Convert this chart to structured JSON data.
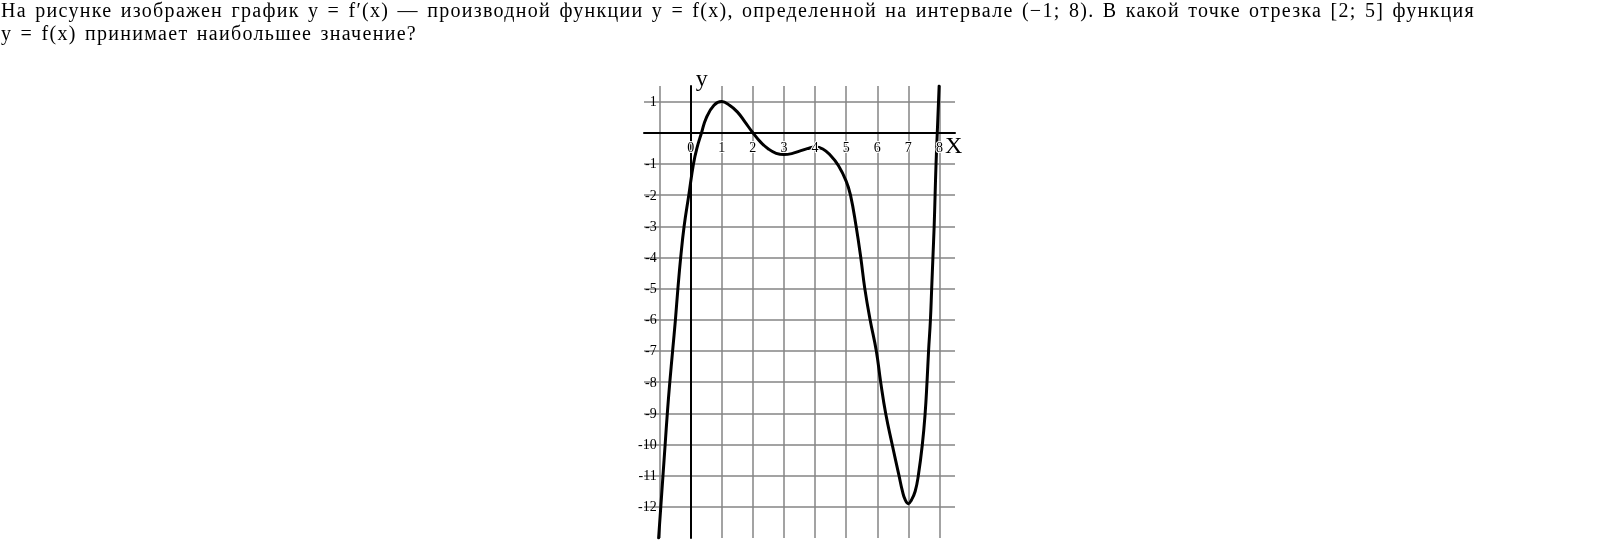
{
  "chart_data": {
    "type": "line",
    "title": "На рисунке изображен график y = f′(x) — производной функции y = f(x), определенной на интервале (−1; 8). В какой точке отрезка [2; 5] функция y = f(x) принимает наибольшее значение?",
    "xlabel": "X",
    "ylabel": "y",
    "x": [
      -1.03,
      -0.96,
      -0.89,
      -0.82,
      -0.75,
      -0.67,
      -0.58,
      -0.49,
      -0.41,
      -0.32,
      -0.21,
      -0.06,
      0.09,
      0.2,
      0.35,
      0.5,
      0.75,
      1,
      1.25,
      1.5,
      1.75,
      2,
      2.25,
      2.5,
      2.75,
      3,
      3.25,
      3.5,
      3.75,
      4,
      4.25,
      4.5,
      4.75,
      5,
      5.14,
      5.32,
      5.47,
      5.6,
      5.77,
      5.97,
      6.11,
      6.27,
      6.48,
      6.7,
      6.81,
      6.9,
      7,
      7.1,
      7.22,
      7.32,
      7.45,
      7.54,
      7.6,
      7.65,
      7.71,
      7.75,
      7.79,
      7.83,
      7.86,
      7.89,
      7.93,
      7.99
    ],
    "values": [
      -13,
      -12,
      -11,
      -10,
      -9,
      -8,
      -7,
      -6,
      -5,
      -4,
      -3,
      -2,
      -1,
      -0.5,
      0,
      0.47,
      0.88,
      1,
      0.88,
      0.67,
      0.34,
      0,
      -0.3,
      -0.52,
      -0.66,
      -0.7,
      -0.67,
      -0.59,
      -0.51,
      -0.46,
      -0.52,
      -0.73,
      -1.05,
      -1.55,
      -2,
      -3,
      -4,
      -5,
      -6,
      -7,
      -8,
      -9,
      -10,
      -11,
      -11.5,
      -11.78,
      -11.9,
      -11.78,
      -11.5,
      -11,
      -10,
      -9,
      -8,
      -7,
      -6,
      -5,
      -4,
      -3,
      -2,
      -1,
      0,
      1.5
    ],
    "color": "#000000",
    "marker": "none",
    "line_style": "solid",
    "xlim": [
      -1.5,
      8.5
    ],
    "ylim": [
      -13,
      1.5
    ],
    "xticks": [
      {
        "value": -1,
        "label": null
      },
      0,
      1,
      2,
      3,
      4,
      5,
      6,
      7,
      8
    ],
    "yticks": [
      -12,
      -11,
      -10,
      -9,
      -8,
      -7,
      -6,
      -5,
      -4,
      -3,
      -2,
      -1,
      {
        "value": 0,
        "label": null
      },
      1
    ],
    "grid": true
  }
}
